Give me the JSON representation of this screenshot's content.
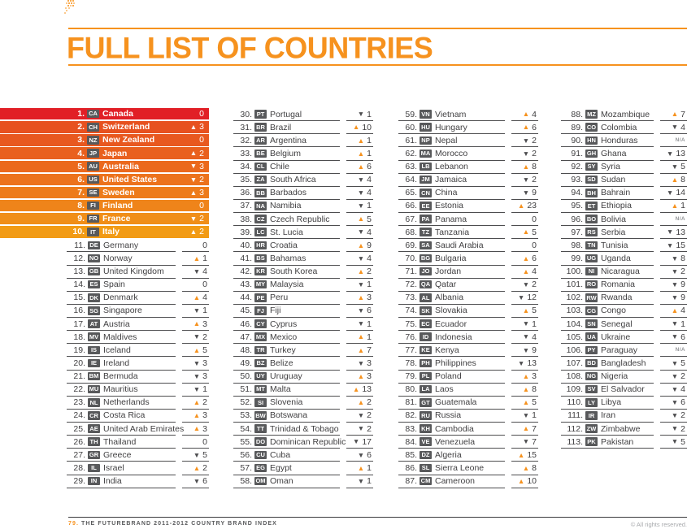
{
  "page": {
    "title": "FULL LIST OF COUNTRIES",
    "footer": {
      "page_number": "79.",
      "source_text": "THE FUTUREBRAND 2011-2012 COUNTRY BRAND INDEX",
      "rights_text": "© All rights reserved."
    },
    "icons": {
      "up_arrow": "▲",
      "down_arrow": "▼",
      "na_label": "N/A",
      "zero_label": "0"
    },
    "colors": {
      "accent_orange": "#F6921E",
      "badge_gray": "#58595B",
      "text_dark": "#414042",
      "arrow_down_gray": "#4D4D4F",
      "rule_dark": "#3A3A3C",
      "top10_colors": [
        "#E11F26",
        "#E7511F",
        "#E8581F",
        "#E9601E",
        "#EB691D",
        "#EC721C",
        "#ED7B1B",
        "#EF841A",
        "#F08E18",
        "#F29B15"
      ]
    }
  },
  "columns": [
    {
      "entries": [
        {
          "rank": 1,
          "code": "CA",
          "name": "Canada",
          "dir": "zero",
          "value": 0
        },
        {
          "rank": 2,
          "code": "CH",
          "name": "Switzerland",
          "dir": "up",
          "value": 3
        },
        {
          "rank": 3,
          "code": "NZ",
          "name": "New Zealand",
          "dir": "zero",
          "value": 0
        },
        {
          "rank": 4,
          "code": "JP",
          "name": "Japan",
          "dir": "up",
          "value": 2
        },
        {
          "rank": 5,
          "code": "AU",
          "name": "Australia",
          "dir": "down",
          "value": 3
        },
        {
          "rank": 6,
          "code": "US",
          "name": "United States",
          "dir": "down",
          "value": 2
        },
        {
          "rank": 7,
          "code": "SE",
          "name": "Sweden",
          "dir": "up",
          "value": 3
        },
        {
          "rank": 8,
          "code": "FI",
          "name": "Finland",
          "dir": "zero",
          "value": 0
        },
        {
          "rank": 9,
          "code": "FR",
          "name": "France",
          "dir": "down",
          "value": 2
        },
        {
          "rank": 10,
          "code": "IT",
          "name": "Italy",
          "dir": "up",
          "value": 2
        },
        {
          "rank": 11,
          "code": "DE",
          "name": "Germany",
          "dir": "zero",
          "value": 0
        },
        {
          "rank": 12,
          "code": "NO",
          "name": "Norway",
          "dir": "up",
          "value": 1
        },
        {
          "rank": 13,
          "code": "GB",
          "name": "United Kingdom",
          "dir": "down",
          "value": 4
        },
        {
          "rank": 14,
          "code": "ES",
          "name": "Spain",
          "dir": "zero",
          "value": 0
        },
        {
          "rank": 15,
          "code": "DK",
          "name": "Denmark",
          "dir": "up",
          "value": 4
        },
        {
          "rank": 16,
          "code": "SG",
          "name": "Singapore",
          "dir": "down",
          "value": 1
        },
        {
          "rank": 17,
          "code": "AT",
          "name": "Austria",
          "dir": "up",
          "value": 3
        },
        {
          "rank": 18,
          "code": "MV",
          "name": "Maldives",
          "dir": "down",
          "value": 2
        },
        {
          "rank": 19,
          "code": "IS",
          "name": "Iceland",
          "dir": "up",
          "value": 5
        },
        {
          "rank": 20,
          "code": "IE",
          "name": "Ireland",
          "dir": "down",
          "value": 3
        },
        {
          "rank": 21,
          "code": "BM",
          "name": "Bermuda",
          "dir": "down",
          "value": 3
        },
        {
          "rank": 22,
          "code": "MU",
          "name": "Mauritius",
          "dir": "down",
          "value": 1
        },
        {
          "rank": 23,
          "code": "NL",
          "name": "Netherlands",
          "dir": "up",
          "value": 2
        },
        {
          "rank": 24,
          "code": "CR",
          "name": "Costa Rica",
          "dir": "up",
          "value": 3
        },
        {
          "rank": 25,
          "code": "AE",
          "name": "United Arab Emirates",
          "dir": "up",
          "value": 3
        },
        {
          "rank": 26,
          "code": "TH",
          "name": "Thailand",
          "dir": "zero",
          "value": 0
        },
        {
          "rank": 27,
          "code": "GR",
          "name": "Greece",
          "dir": "down",
          "value": 5
        },
        {
          "rank": 28,
          "code": "IL",
          "name": "Israel",
          "dir": "up",
          "value": 2
        },
        {
          "rank": 29,
          "code": "IN",
          "name": "India",
          "dir": "down",
          "value": 6
        }
      ]
    },
    {
      "entries": [
        {
          "rank": 30,
          "code": "PT",
          "name": "Portugal",
          "dir": "down",
          "value": 1
        },
        {
          "rank": 31,
          "code": "BR",
          "name": "Brazil",
          "dir": "up",
          "value": 10
        },
        {
          "rank": 32,
          "code": "AR",
          "name": "Argentina",
          "dir": "up",
          "value": 1
        },
        {
          "rank": 33,
          "code": "BE",
          "name": "Belgium",
          "dir": "up",
          "value": 1
        },
        {
          "rank": 34,
          "code": "CL",
          "name": "Chile",
          "dir": "up",
          "value": 6
        },
        {
          "rank": 35,
          "code": "ZA",
          "name": "South Africa",
          "dir": "down",
          "value": 4
        },
        {
          "rank": 36,
          "code": "BB",
          "name": "Barbados",
          "dir": "down",
          "value": 4
        },
        {
          "rank": 37,
          "code": "NA",
          "name": "Namibia",
          "dir": "down",
          "value": 1
        },
        {
          "rank": 38,
          "code": "CZ",
          "name": "Czech Republic",
          "dir": "up",
          "value": 5
        },
        {
          "rank": 39,
          "code": "LC",
          "name": "St. Lucia",
          "dir": "down",
          "value": 4
        },
        {
          "rank": 40,
          "code": "HR",
          "name": "Croatia",
          "dir": "up",
          "value": 9
        },
        {
          "rank": 41,
          "code": "BS",
          "name": "Bahamas",
          "dir": "down",
          "value": 4
        },
        {
          "rank": 42,
          "code": "KR",
          "name": "South Korea",
          "dir": "up",
          "value": 2
        },
        {
          "rank": 43,
          "code": "MY",
          "name": "Malaysia",
          "dir": "down",
          "value": 1
        },
        {
          "rank": 44,
          "code": "PE",
          "name": "Peru",
          "dir": "up",
          "value": 3
        },
        {
          "rank": 45,
          "code": "FJ",
          "name": "Fiji",
          "dir": "down",
          "value": 6
        },
        {
          "rank": 46,
          "code": "CY",
          "name": "Cyprus",
          "dir": "down",
          "value": 1
        },
        {
          "rank": 47,
          "code": "MX",
          "name": "Mexico",
          "dir": "up",
          "value": 1
        },
        {
          "rank": 48,
          "code": "TR",
          "name": "Turkey",
          "dir": "up",
          "value": 7
        },
        {
          "rank": 49,
          "code": "BZ",
          "name": "Belize",
          "dir": "down",
          "value": 3
        },
        {
          "rank": 50,
          "code": "UY",
          "name": "Uruguay",
          "dir": "up",
          "value": 3
        },
        {
          "rank": 51,
          "code": "MT",
          "name": "Malta",
          "dir": "up",
          "value": 13
        },
        {
          "rank": 52,
          "code": "SI",
          "name": "Slovenia",
          "dir": "up",
          "value": 2
        },
        {
          "rank": 53,
          "code": "BW",
          "name": "Botswana",
          "dir": "down",
          "value": 2
        },
        {
          "rank": 54,
          "code": "TT",
          "name": "Trinidad & Tobago",
          "dir": "down",
          "value": 2
        },
        {
          "rank": 55,
          "code": "DO",
          "name": "Dominican Republic",
          "dir": "down",
          "value": 17
        },
        {
          "rank": 56,
          "code": "CU",
          "name": "Cuba",
          "dir": "down",
          "value": 6
        },
        {
          "rank": 57,
          "code": "EG",
          "name": "Egypt",
          "dir": "up",
          "value": 1
        },
        {
          "rank": 58,
          "code": "OM",
          "name": "Oman",
          "dir": "down",
          "value": 1
        }
      ]
    },
    {
      "entries": [
        {
          "rank": 59,
          "code": "VN",
          "name": "Vietnam",
          "dir": "up",
          "value": 4
        },
        {
          "rank": 60,
          "code": "HU",
          "name": "Hungary",
          "dir": "up",
          "value": 6
        },
        {
          "rank": 61,
          "code": "NP",
          "name": "Nepal",
          "dir": "down",
          "value": 2
        },
        {
          "rank": 62,
          "code": "MA",
          "name": "Morocco",
          "dir": "down",
          "value": 2
        },
        {
          "rank": 63,
          "code": "LB",
          "name": "Lebanon",
          "dir": "up",
          "value": 8
        },
        {
          "rank": 64,
          "code": "JM",
          "name": "Jamaica",
          "dir": "down",
          "value": 2
        },
        {
          "rank": 65,
          "code": "CN",
          "name": "China",
          "dir": "down",
          "value": 9
        },
        {
          "rank": 66,
          "code": "EE",
          "name": "Estonia",
          "dir": "up",
          "value": 23
        },
        {
          "rank": 67,
          "code": "PA",
          "name": "Panama",
          "dir": "zero",
          "value": 0
        },
        {
          "rank": 68,
          "code": "TZ",
          "name": "Tanzania",
          "dir": "up",
          "value": 5
        },
        {
          "rank": 69,
          "code": "SA",
          "name": "Saudi Arabia",
          "dir": "zero",
          "value": 0
        },
        {
          "rank": 70,
          "code": "BG",
          "name": "Bulgaria",
          "dir": "up",
          "value": 6
        },
        {
          "rank": 71,
          "code": "JO",
          "name": "Jordan",
          "dir": "up",
          "value": 4
        },
        {
          "rank": 72,
          "code": "QA",
          "name": "Qatar",
          "dir": "down",
          "value": 2
        },
        {
          "rank": 73,
          "code": "AL",
          "name": "Albania",
          "dir": "down",
          "value": 12
        },
        {
          "rank": 74,
          "code": "SK",
          "name": "Slovakia",
          "dir": "up",
          "value": 5
        },
        {
          "rank": 75,
          "code": "EC",
          "name": "Ecuador",
          "dir": "down",
          "value": 1
        },
        {
          "rank": 76,
          "code": "ID",
          "name": "Indonesia",
          "dir": "down",
          "value": 4
        },
        {
          "rank": 77,
          "code": "KE",
          "name": "Kenya",
          "dir": "down",
          "value": 9
        },
        {
          "rank": 78,
          "code": "PH",
          "name": "Philippines",
          "dir": "down",
          "value": 13
        },
        {
          "rank": 79,
          "code": "PL",
          "name": "Poland",
          "dir": "up",
          "value": 3
        },
        {
          "rank": 80,
          "code": "LA",
          "name": "Laos",
          "dir": "up",
          "value": 8
        },
        {
          "rank": 81,
          "code": "GT",
          "name": "Guatemala",
          "dir": "up",
          "value": 5
        },
        {
          "rank": 82,
          "code": "RU",
          "name": "Russia",
          "dir": "down",
          "value": 1
        },
        {
          "rank": 83,
          "code": "KH",
          "name": "Cambodia",
          "dir": "up",
          "value": 7
        },
        {
          "rank": 84,
          "code": "VE",
          "name": "Venezuela",
          "dir": "down",
          "value": 7
        },
        {
          "rank": 85,
          "code": "DZ",
          "name": "Algeria",
          "dir": "up",
          "value": 15
        },
        {
          "rank": 86,
          "code": "SL",
          "name": "Sierra Leone",
          "dir": "up",
          "value": 8
        },
        {
          "rank": 87,
          "code": "CM",
          "name": "Cameroon",
          "dir": "up",
          "value": 10
        }
      ]
    },
    {
      "entries": [
        {
          "rank": 88,
          "code": "MZ",
          "name": "Mozambique",
          "dir": "up",
          "value": 7
        },
        {
          "rank": 89,
          "code": "CO",
          "name": "Colombia",
          "dir": "down",
          "value": 4
        },
        {
          "rank": 90,
          "code": "HN",
          "name": "Honduras",
          "dir": "na",
          "value": null
        },
        {
          "rank": 91,
          "code": "GH",
          "name": "Ghana",
          "dir": "down",
          "value": 13
        },
        {
          "rank": 92,
          "code": "SY",
          "name": "Syria",
          "dir": "down",
          "value": 5
        },
        {
          "rank": 93,
          "code": "SD",
          "name": "Sudan",
          "dir": "up",
          "value": 8
        },
        {
          "rank": 94,
          "code": "BH",
          "name": "Bahrain",
          "dir": "down",
          "value": 14
        },
        {
          "rank": 95,
          "code": "ET",
          "name": "Ethiopia",
          "dir": "up",
          "value": 1
        },
        {
          "rank": 96,
          "code": "BO",
          "name": "Bolivia",
          "dir": "na",
          "value": null
        },
        {
          "rank": 97,
          "code": "RS",
          "name": "Serbia",
          "dir": "down",
          "value": 13
        },
        {
          "rank": 98,
          "code": "TN",
          "name": "Tunisia",
          "dir": "down",
          "value": 15
        },
        {
          "rank": 99,
          "code": "UG",
          "name": "Uganda",
          "dir": "down",
          "value": 8
        },
        {
          "rank": 100,
          "code": "NI",
          "name": "Nicaragua",
          "dir": "down",
          "value": 2
        },
        {
          "rank": 101,
          "code": "RO",
          "name": "Romania",
          "dir": "down",
          "value": 9
        },
        {
          "rank": 102,
          "code": "RW",
          "name": "Rwanda",
          "dir": "down",
          "value": 9
        },
        {
          "rank": 103,
          "code": "CG",
          "name": "Congo",
          "dir": "up",
          "value": 4
        },
        {
          "rank": 104,
          "code": "SN",
          "name": "Senegal",
          "dir": "down",
          "value": 1
        },
        {
          "rank": 105,
          "code": "UA",
          "name": "Ukraine",
          "dir": "down",
          "value": 6
        },
        {
          "rank": 106,
          "code": "PY",
          "name": "Paraguay",
          "dir": "na",
          "value": null
        },
        {
          "rank": 107,
          "code": "BD",
          "name": "Bangladesh",
          "dir": "down",
          "value": 5
        },
        {
          "rank": 108,
          "code": "NG",
          "name": "Nigeria",
          "dir": "down",
          "value": 2
        },
        {
          "rank": 109,
          "code": "SV",
          "name": "El Salvador",
          "dir": "down",
          "value": 4
        },
        {
          "rank": 110,
          "code": "LY",
          "name": "Libya",
          "dir": "down",
          "value": 6
        },
        {
          "rank": 111,
          "code": "IR",
          "name": "Iran",
          "dir": "down",
          "value": 2
        },
        {
          "rank": 112,
          "code": "ZW",
          "name": "Zimbabwe",
          "dir": "down",
          "value": 2
        },
        {
          "rank": 113,
          "code": "PK",
          "name": "Pakistan",
          "dir": "down",
          "value": 5
        }
      ]
    }
  ]
}
